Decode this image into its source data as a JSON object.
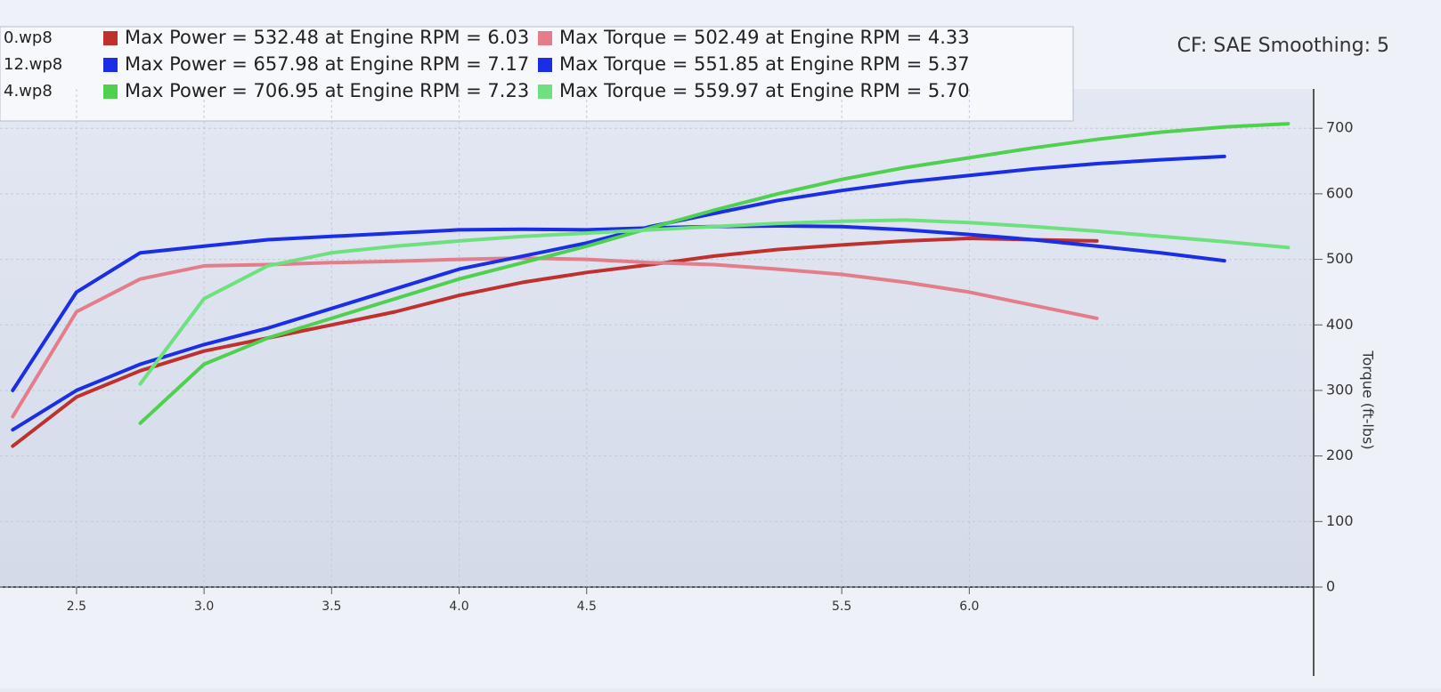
{
  "chart_data": {
    "type": "line",
    "runs": [
      "0.wp8",
      "12.wp8",
      "4.wp8"
    ],
    "corner_note": "CF: SAE Smoothing: 5",
    "y_label": "Torque (ft-lbs)",
    "x": [
      2.25,
      2.5,
      2.75,
      3,
      3.25,
      3.5,
      3.75,
      4,
      4.25,
      4.5,
      4.75,
      5,
      5.25,
      5.5,
      5.75,
      6,
      6.25,
      6.5,
      6.75,
      7,
      7.25
    ],
    "series": [
      {
        "name": "Max Power = 532.48 at Engine RPM = 6.03",
        "color": "#c0302e",
        "run": 0,
        "values": [
          215,
          290,
          330,
          360,
          380,
          400,
          420,
          445,
          465,
          480,
          492,
          505,
          515,
          522,
          528,
          532,
          530,
          528,
          null,
          null,
          null
        ]
      },
      {
        "name": "Max Torque = 502.49 at Engine RPM = 4.33",
        "color": "#e47d8b",
        "run": 0,
        "values": [
          260,
          420,
          470,
          490,
          492,
          495,
          497,
          500,
          502,
          500,
          495,
          492,
          485,
          477,
          465,
          450,
          430,
          410,
          null,
          null,
          null
        ]
      },
      {
        "name": "Max Power = 657.98 at Engine RPM = 7.17",
        "color": "#1a2ee6",
        "run": 1,
        "values": [
          240,
          300,
          340,
          370,
          395,
          425,
          455,
          485,
          505,
          525,
          550,
          570,
          590,
          605,
          618,
          628,
          638,
          646,
          652,
          657,
          null
        ]
      },
      {
        "name": "Max Torque = 551.85 at Engine RPM = 5.37",
        "color": "#1a2ee6",
        "run": 1,
        "values": [
          300,
          450,
          510,
          520,
          530,
          535,
          540,
          545,
          546,
          545,
          548,
          550,
          551,
          550,
          545,
          538,
          530,
          520,
          510,
          498,
          null
        ]
      },
      {
        "name": "Max Power = 706.95 at Engine RPM = 7.23",
        "color": "#4fd04f",
        "run": 2,
        "values": [
          null,
          null,
          250,
          340,
          380,
          410,
          440,
          470,
          495,
          520,
          548,
          575,
          600,
          622,
          640,
          655,
          670,
          683,
          694,
          702,
          707
        ]
      },
      {
        "name": "Max Torque = 559.97 at Engine RPM = 5.70",
        "color": "#6fe07f",
        "run": 2,
        "values": [
          null,
          null,
          310,
          440,
          490,
          510,
          520,
          528,
          535,
          540,
          545,
          550,
          555,
          558,
          560,
          556,
          550,
          543,
          535,
          527,
          518
        ]
      }
    ],
    "xlim": [
      2.2,
      7.35
    ],
    "xticks": [
      2.5,
      {
        "value": 3,
        "label": "3.0"
      },
      3.5,
      {
        "value": 4,
        "label": "4.0"
      },
      4.5,
      5.5,
      {
        "value": 6,
        "label": "6.0"
      }
    ],
    "ylim": [
      0,
      760
    ],
    "yticks": [
      0,
      100,
      200,
      300,
      400,
      500,
      600,
      700
    ],
    "grid": true
  }
}
